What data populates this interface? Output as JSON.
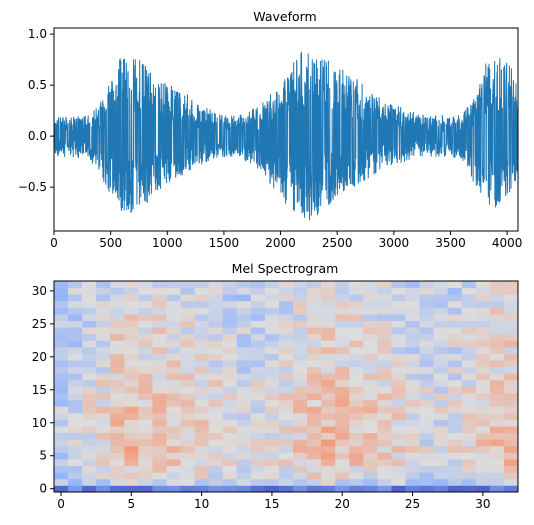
{
  "chart_data": [
    {
      "type": "line",
      "title": "Waveform",
      "xlabel": "",
      "ylabel": "",
      "xlim": [
        0,
        4096
      ],
      "ylim": [
        -0.93,
        1.06
      ],
      "xticks": [
        0,
        500,
        1000,
        1500,
        2000,
        2500,
        3000,
        3500,
        4000
      ],
      "yticks": [
        -0.5,
        0.0,
        0.5,
        1.0
      ],
      "xtick_labels": [
        "0",
        "500",
        "1000",
        "1500",
        "2000",
        "2500",
        "3000",
        "3500",
        "4000"
      ],
      "ytick_labels": [
        "−0.5",
        "0.0",
        "0.5",
        "1.0"
      ],
      "grid": false,
      "line_color": "#1f77b4",
      "samples": 4096,
      "envelope": {
        "x": [
          0,
          300,
          400,
          500,
          600,
          700,
          800,
          900,
          1000,
          1100,
          1200,
          1300,
          1400,
          1500,
          1600,
          1700,
          1800,
          1900,
          2000,
          2100,
          2200,
          2300,
          2400,
          2500,
          2600,
          2700,
          2800,
          2900,
          3000,
          3100,
          3200,
          3300,
          3400,
          3500,
          3600,
          3700,
          3800,
          3900,
          4000,
          4096
        ],
        "upper": [
          0.18,
          0.2,
          0.3,
          0.55,
          0.8,
          0.8,
          0.75,
          0.55,
          0.55,
          0.45,
          0.4,
          0.3,
          0.25,
          0.2,
          0.2,
          0.22,
          0.3,
          0.4,
          0.5,
          0.7,
          0.85,
          0.82,
          0.75,
          0.7,
          0.6,
          0.55,
          0.45,
          0.35,
          0.3,
          0.28,
          0.22,
          0.2,
          0.2,
          0.22,
          0.2,
          0.38,
          0.7,
          0.8,
          0.9,
          0.45
        ],
        "lower": [
          -0.2,
          -0.22,
          -0.35,
          -0.6,
          -0.75,
          -0.8,
          -0.7,
          -0.55,
          -0.5,
          -0.4,
          -0.35,
          -0.28,
          -0.22,
          -0.2,
          -0.2,
          -0.25,
          -0.35,
          -0.45,
          -0.6,
          -0.75,
          -0.85,
          -0.8,
          -0.7,
          -0.6,
          -0.55,
          -0.45,
          -0.4,
          -0.3,
          -0.28,
          -0.25,
          -0.2,
          -0.2,
          -0.2,
          -0.2,
          -0.22,
          -0.45,
          -0.65,
          -0.7,
          -0.6,
          -0.4
        ]
      }
    },
    {
      "type": "heatmap",
      "title": "Mel Spectrogram",
      "xlabel": "",
      "ylabel": "",
      "n_frames": 33,
      "n_bins": 32,
      "xlim": [
        -0.5,
        32.5
      ],
      "ylim": [
        -0.5,
        31.5
      ],
      "xticks": [
        0,
        5,
        10,
        15,
        20,
        25,
        30
      ],
      "yticks": [
        0,
        5,
        10,
        15,
        20,
        25,
        30
      ],
      "xtick_labels": [
        "0",
        "5",
        "10",
        "15",
        "20",
        "25",
        "30"
      ],
      "ytick_labels": [
        "0",
        "5",
        "10",
        "15",
        "20",
        "25",
        "30"
      ],
      "colormap": "coolwarm",
      "origin": "lower",
      "value_range": [
        0,
        1
      ],
      "frame_energy": [
        0.2,
        0.3,
        0.45,
        0.55,
        0.75,
        0.8,
        0.75,
        0.75,
        0.7,
        0.65,
        0.6,
        0.55,
        0.45,
        0.35,
        0.4,
        0.45,
        0.55,
        0.65,
        0.75,
        0.85,
        0.75,
        0.7,
        0.65,
        0.6,
        0.55,
        0.45,
        0.4,
        0.4,
        0.45,
        0.55,
        0.65,
        0.75,
        0.8
      ],
      "bin_profile": [
        0.05,
        0.3,
        0.55,
        0.65,
        0.75,
        0.8,
        0.8,
        0.75,
        0.75,
        0.7,
        0.75,
        0.8,
        0.8,
        0.75,
        0.75,
        0.7,
        0.7,
        0.65,
        0.6,
        0.6,
        0.55,
        0.55,
        0.6,
        0.6,
        0.55,
        0.55,
        0.5,
        0.5,
        0.5,
        0.45,
        0.45,
        0.45
      ],
      "low_bin_band": {
        "bin": 0,
        "value": 0.05
      }
    }
  ]
}
